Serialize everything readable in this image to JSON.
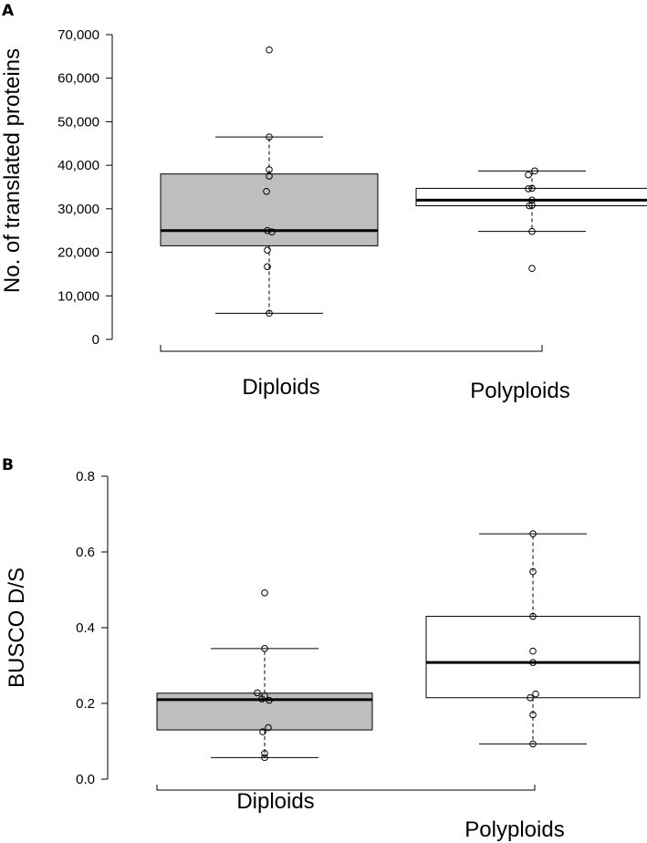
{
  "chart_data": [
    {
      "type": "box",
      "panel": "A",
      "title": "",
      "ylabel": "No. of translated proteins",
      "xlabel": "",
      "ylim": [
        0,
        70000
      ],
      "yticks": [
        0,
        10000,
        20000,
        30000,
        40000,
        50000,
        60000,
        70000
      ],
      "ytick_labels": [
        "0",
        "10,000",
        "20,000",
        "30,000",
        "40,000",
        "50,000",
        "60,000",
        "70,000"
      ],
      "categories": [
        "Diploids",
        "Polyploids"
      ],
      "groups": [
        {
          "name": "Diploids",
          "fill": "#bebebe",
          "whisker_low": 6000,
          "q1": 21500,
          "median": 25000,
          "q3": 38000,
          "whisker_high": 46500,
          "points": [
            66500,
            46500,
            39000,
            37500,
            34000,
            25000,
            24700,
            20500,
            16700,
            6000
          ]
        },
        {
          "name": "Polyploids",
          "fill": "#ffffff",
          "whisker_low": 24800,
          "q1": 30700,
          "median": 32000,
          "q3": 34700,
          "whisker_high": 38700,
          "points": [
            38700,
            37800,
            34700,
            34600,
            32000,
            30800,
            30700,
            24800,
            16300
          ]
        }
      ]
    },
    {
      "type": "box",
      "panel": "B",
      "title": "",
      "ylabel": "BUSCO D/S",
      "xlabel": "",
      "ylim": [
        0.0,
        0.8
      ],
      "yticks": [
        0.0,
        0.2,
        0.4,
        0.6,
        0.8
      ],
      "ytick_labels": [
        "0.0",
        "0.2",
        "0.4",
        "0.6",
        "0.8"
      ],
      "categories": [
        "Diploids",
        "Polyploids"
      ],
      "groups": [
        {
          "name": "Diploids",
          "fill": "#bebebe",
          "whisker_low": 0.057,
          "q1": 0.13,
          "median": 0.21,
          "q3": 0.227,
          "whisker_high": 0.345,
          "points": [
            0.492,
            0.345,
            0.228,
            0.22,
            0.212,
            0.208,
            0.136,
            0.125,
            0.068,
            0.057
          ]
        },
        {
          "name": "Polyploids",
          "fill": "#ffffff",
          "whisker_low": 0.093,
          "q1": 0.215,
          "median": 0.308,
          "q3": 0.43,
          "whisker_high": 0.648,
          "points": [
            0.648,
            0.548,
            0.43,
            0.338,
            0.308,
            0.225,
            0.215,
            0.17,
            0.093
          ]
        }
      ]
    }
  ]
}
